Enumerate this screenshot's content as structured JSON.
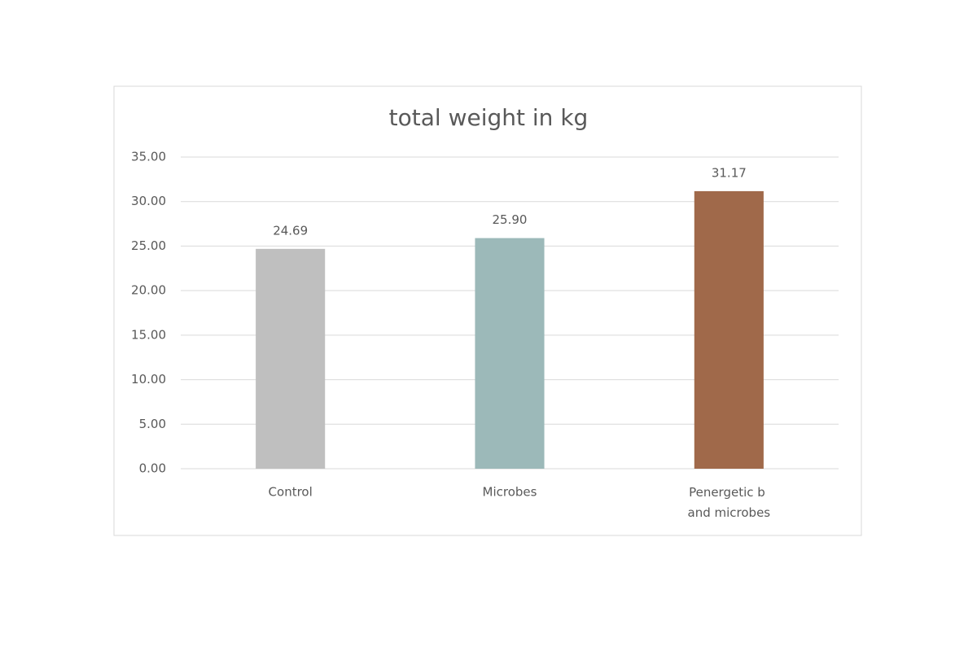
{
  "chart_data": {
    "type": "bar",
    "title": "total weight in kg",
    "categories": [
      "Control",
      "Microbes",
      "Penergetic b and microbes"
    ],
    "values": [
      24.69,
      25.9,
      31.17
    ],
    "value_labels": [
      "24.69",
      "25.90",
      "31.17"
    ],
    "colors": [
      "#bfbfbf",
      "#9cb9b9",
      "#a0694a"
    ],
    "ylim": [
      0,
      35
    ],
    "yticks": [
      {
        "value": 0,
        "label": "0.00"
      },
      {
        "value": 5,
        "label": "5.00"
      },
      {
        "value": 10,
        "label": "10.00"
      },
      {
        "value": 15,
        "label": "15.00"
      },
      {
        "value": 20,
        "label": "20.00"
      },
      {
        "value": 25,
        "label": "25.00"
      },
      {
        "value": 30,
        "label": "30.00"
      },
      {
        "value": 35,
        "label": "35.00"
      }
    ],
    "grid": true
  }
}
